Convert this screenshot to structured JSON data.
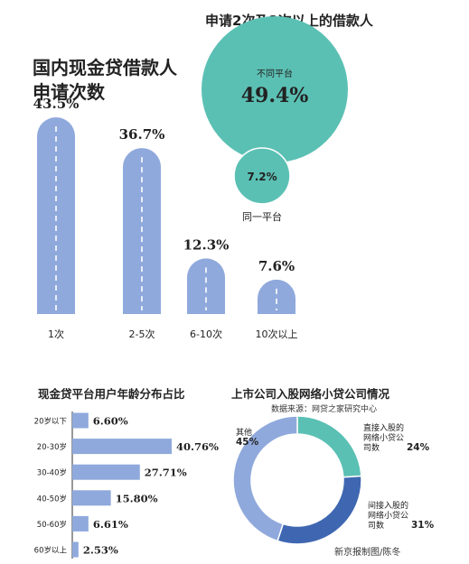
{
  "applications": {
    "title_line1": "国内现金贷借款人",
    "title_line2": "申请次数",
    "color": "#8fa9dc",
    "chart_data": {
      "type": "bar",
      "title": "国内现金贷借款人申请次数",
      "categories": [
        "1次",
        "2-5次",
        "6-10次",
        "10次以上"
      ],
      "values": [
        43.5,
        36.7,
        12.3,
        7.6
      ],
      "value_labels": [
        "43.5%",
        "36.7%",
        "12.3%",
        "7.6%"
      ],
      "unit": "%"
    }
  },
  "multi_apply": {
    "title": "申请2次及2次以上的借款人",
    "color": "#5bc0b4",
    "chart_data": {
      "type": "pie",
      "title": "申请2次及2次以上的借款人",
      "categories": [
        "不同平台",
        "同一平台"
      ],
      "values": [
        49.4,
        7.2
      ],
      "value_labels": [
        "49.4%",
        "7.2%"
      ],
      "unit": "%"
    }
  },
  "age": {
    "title": "现金贷平台用户年龄分布占比",
    "color": "#8fa9dc",
    "chart_data": {
      "type": "bar",
      "orientation": "horizontal",
      "title": "现金贷平台用户年龄分布占比",
      "categories": [
        "20岁以下",
        "20-30岁",
        "30-40岁",
        "40-50岁",
        "50-60岁",
        "60岁以上"
      ],
      "values": [
        6.6,
        40.76,
        27.71,
        15.8,
        6.61,
        2.53
      ],
      "value_labels": [
        "6.60%",
        "40.76%",
        "27.71%",
        "15.80%",
        "6.61%",
        "2.53%"
      ],
      "unit": "%"
    }
  },
  "donut": {
    "title": "上市公司入股网络小贷公司情况",
    "source": "数据来源：网贷之家研究中心",
    "credit": "新京报制图/陈冬",
    "colors": [
      "#5bc0b4",
      "#3f67b1",
      "#8fa9dc"
    ],
    "chart_data": {
      "type": "pie",
      "style": "donut",
      "title": "上市公司入股网络小贷公司情况",
      "categories": [
        "直接入股的网络小贷公司数",
        "间接入股的网络小贷公司数",
        "其他"
      ],
      "values": [
        24,
        31,
        45
      ],
      "label_lines": [
        [
          "直接入股的",
          "网络小贷公",
          "司数",
          "24%"
        ],
        [
          "间接入股的",
          "网络小贷公",
          "司数",
          "31%"
        ],
        [
          "其他",
          "45%"
        ]
      ],
      "unit": "%"
    }
  }
}
